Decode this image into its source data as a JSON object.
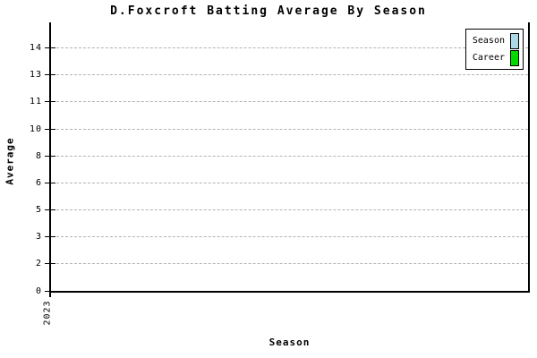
{
  "chart_data": {
    "type": "bar",
    "title": "D.Foxcroft Batting Average By Season",
    "xlabel": "Season",
    "ylabel": "Average",
    "categories": [
      "2023"
    ],
    "series": [
      {
        "name": "Season",
        "color": "#add8e6",
        "values": [
          0
        ]
      },
      {
        "name": "Career",
        "color": "#00d800",
        "values": [
          0
        ]
      }
    ],
    "ylim": [
      0,
      16
    ],
    "ytick_labels_bottom_to_top": [
      "0",
      "2",
      "3",
      "5",
      "6",
      "8",
      "10",
      "11",
      "13",
      "14"
    ],
    "xtick_labels": [
      "2023"
    ],
    "grid": {
      "horizontal": true,
      "style": "dashed",
      "color": "#b3b3b3"
    },
    "legend_position": "top-right",
    "axis_color": "#000000",
    "background": "#ffffff",
    "notes_visible_data": "plot area is empty - no bars or points rendered"
  }
}
